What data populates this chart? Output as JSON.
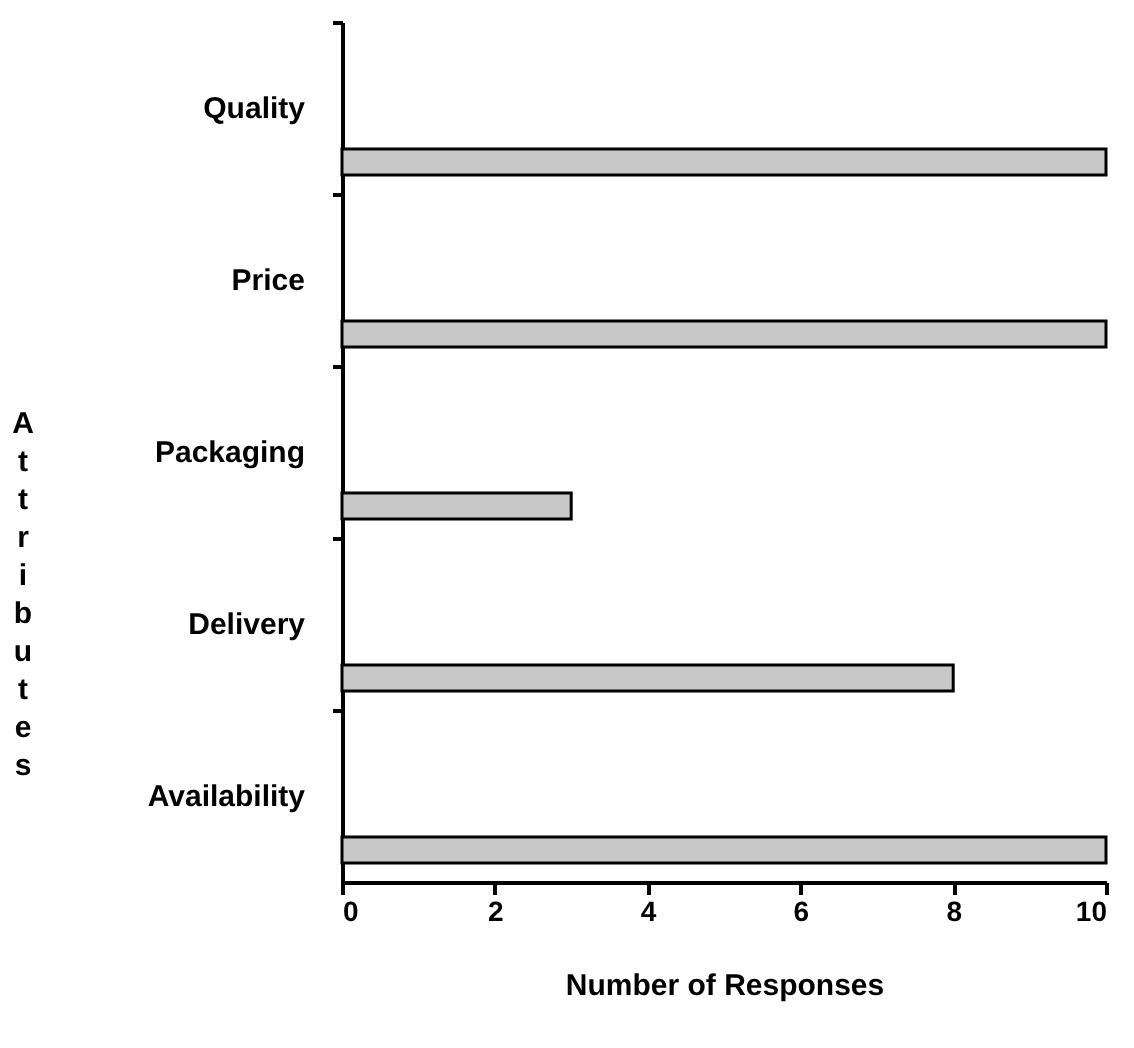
{
  "chart_data": {
    "type": "bar",
    "orientation": "horizontal",
    "categories": [
      "Quality",
      "Price",
      "Packaging",
      "Delivery",
      "Availability"
    ],
    "values": [
      10,
      10,
      3,
      8,
      10
    ],
    "color": "#c8c8c8",
    "xlim": [
      0,
      10
    ],
    "xticks": [
      0,
      2,
      4,
      6,
      8,
      10
    ],
    "xlabel": "Number of Responses",
    "ylabel": "Attributes"
  }
}
